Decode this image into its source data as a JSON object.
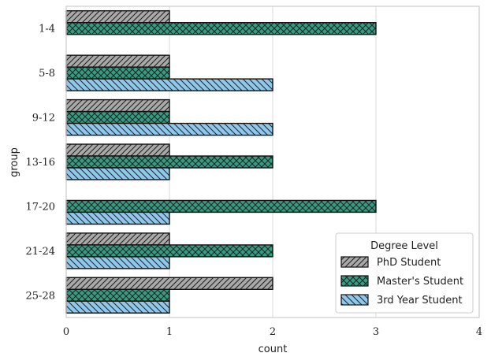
{
  "chart_data": {
    "type": "bar",
    "orientation": "horizontal",
    "categories": [
      "1-4",
      "5-8",
      "9-12",
      "13-16",
      "17-20",
      "21-24",
      "25-28"
    ],
    "series": [
      {
        "name": "PhD Student",
        "values": [
          1,
          1,
          1,
          1,
          0,
          1,
          2
        ],
        "color": "#a9a9a9",
        "hatch": "forward-diagonal"
      },
      {
        "name": "Master's Student",
        "values": [
          3,
          1,
          1,
          2,
          3,
          2,
          1
        ],
        "color": "#3a9a82",
        "hatch": "crosshatch"
      },
      {
        "name": "3rd Year Student",
        "values": [
          0,
          2,
          2,
          1,
          1,
          1,
          1
        ],
        "color": "#90c8ec",
        "hatch": "back-diagonal"
      }
    ],
    "xlabel": "count",
    "ylabel": "group",
    "xlim": [
      0,
      4
    ],
    "xticks": [
      "0",
      "1",
      "2",
      "3",
      "4"
    ],
    "grid": "vertical",
    "legend": {
      "title": "Degree Level",
      "placement": "lower-right"
    }
  }
}
